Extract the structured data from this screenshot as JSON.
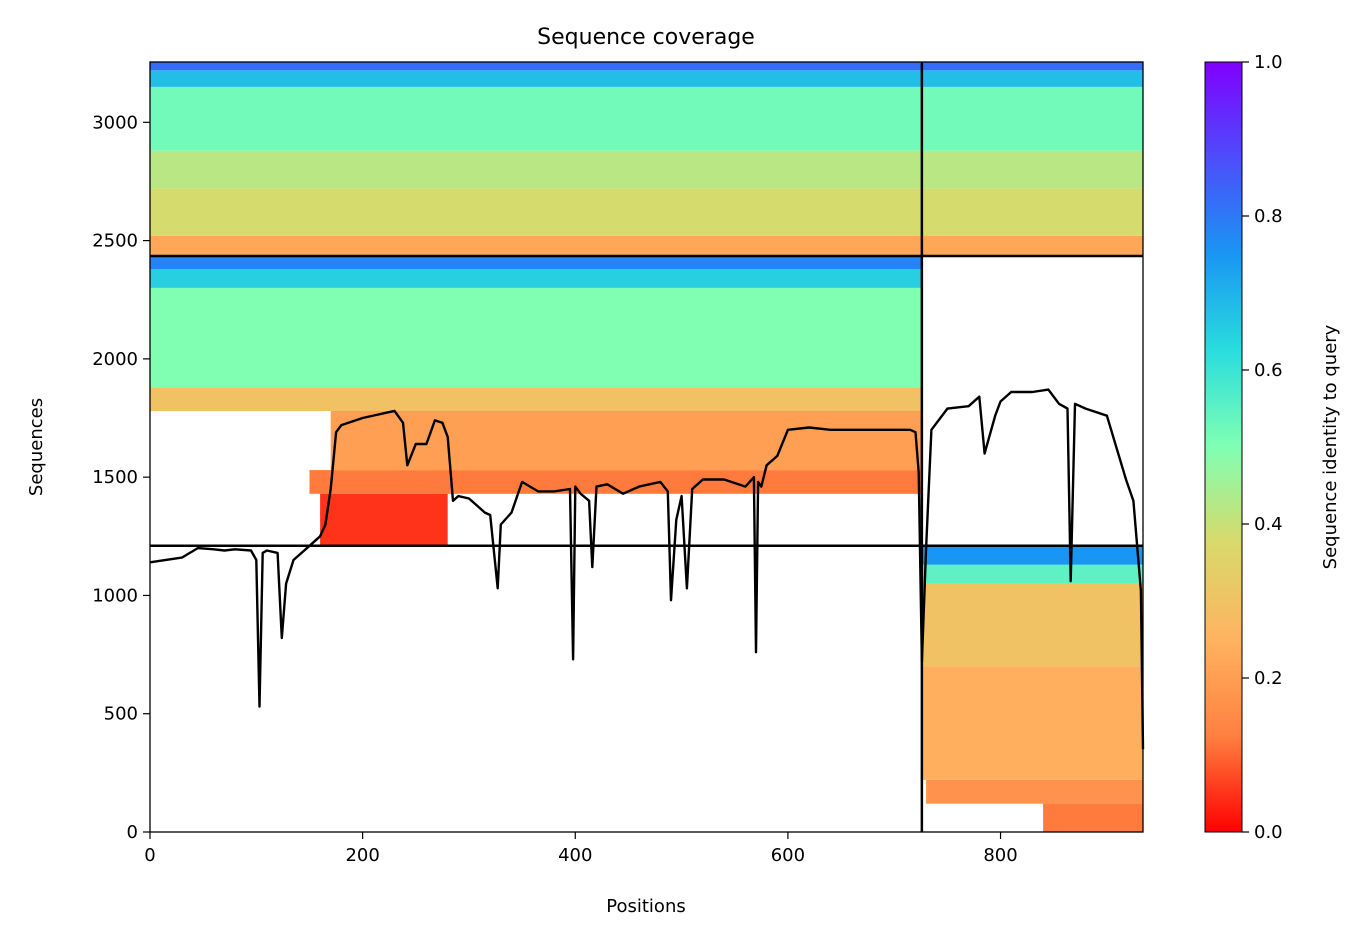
{
  "chart_data": {
    "type": "heatmap",
    "title": "Sequence coverage",
    "xlabel": "Positions",
    "ylabel": "Sequences",
    "xlim": [
      0,
      934
    ],
    "ylim": [
      0,
      3255
    ],
    "x_ticks": [
      0,
      200,
      400,
      600,
      800
    ],
    "y_ticks": [
      0,
      500,
      1000,
      1500,
      2000,
      2500,
      3000
    ],
    "grid": false,
    "colorbar": {
      "label": "Sequence identity to query",
      "range": [
        0,
        1
      ],
      "ticks": [
        "0.0",
        "0.2",
        "0.4",
        "0.6",
        "0.8",
        "1.0"
      ],
      "colormap": "rainbow_r",
      "colors": [
        "#ff0000",
        "#ff8040",
        "#ffb360",
        "#d9d96a",
        "#80ffb3",
        "#2adddd",
        "#1996f3",
        "#4d4dfb",
        "#8000ff"
      ]
    },
    "boundaries": {
      "x_positions": [
        726
      ],
      "y_sequences": [
        1210,
        2435
      ]
    },
    "blocks": [
      {
        "name": "chain-1-only",
        "x": [
          0,
          726
        ],
        "y": [
          1210,
          2435
        ],
        "bands": [
          {
            "y": [
              1210,
              1430
            ],
            "x": [
              160,
              280
            ],
            "identity": 0.05
          },
          {
            "y": [
              1430,
              1530
            ],
            "x": [
              150,
              726
            ],
            "identity": 0.12
          },
          {
            "y": [
              1530,
              1780
            ],
            "x": [
              170,
              726
            ],
            "identity": 0.2
          },
          {
            "y": [
              1780,
              1880
            ],
            "x": [
              0,
              726
            ],
            "identity": 0.3
          },
          {
            "y": [
              1880,
              2300
            ],
            "x": [
              0,
              726
            ],
            "identity": 0.5
          },
          {
            "y": [
              2300,
              2380
            ],
            "x": [
              0,
              726
            ],
            "identity": 0.65
          },
          {
            "y": [
              2380,
              2435
            ],
            "x": [
              0,
              726
            ],
            "identity": 0.78
          }
        ]
      },
      {
        "name": "chain-2-only",
        "x": [
          726,
          934
        ],
        "y": [
          0,
          1210
        ],
        "bands": [
          {
            "y": [
              0,
              120
            ],
            "x": [
              840,
              934
            ],
            "identity": 0.12
          },
          {
            "y": [
              120,
              220
            ],
            "x": [
              730,
              934
            ],
            "identity": 0.17
          },
          {
            "y": [
              220,
              700
            ],
            "x": [
              726,
              934
            ],
            "identity": 0.24
          },
          {
            "y": [
              700,
              1050
            ],
            "x": [
              726,
              934
            ],
            "identity": 0.3
          },
          {
            "y": [
              1050,
              1130
            ],
            "x": [
              726,
              934
            ],
            "identity": 0.55
          },
          {
            "y": [
              1130,
              1210
            ],
            "x": [
              726,
              934
            ],
            "identity": 0.75
          }
        ]
      },
      {
        "name": "paired",
        "x": [
          0,
          934
        ],
        "y": [
          2435,
          3255
        ],
        "bands": [
          {
            "y": [
              2435,
              2520
            ],
            "x": [
              0,
              934
            ],
            "identity": 0.22
          },
          {
            "y": [
              2520,
              2720
            ],
            "x": [
              0,
              934
            ],
            "identity": 0.38
          },
          {
            "y": [
              2720,
              2880
            ],
            "x": [
              0,
              934
            ],
            "identity": 0.42
          },
          {
            "y": [
              2880,
              3150
            ],
            "x": [
              0,
              934
            ],
            "identity": 0.52
          },
          {
            "y": [
              3150,
              3220
            ],
            "x": [
              0,
              934
            ],
            "identity": 0.68
          },
          {
            "y": [
              3220,
              3255
            ],
            "x": [
              0,
              934
            ],
            "identity": 0.82
          }
        ]
      }
    ],
    "coverage_line": {
      "x": [
        0,
        30,
        45,
        60,
        70,
        80,
        95,
        100,
        103,
        106,
        110,
        120,
        124,
        128,
        135,
        150,
        160,
        165,
        170,
        175,
        180,
        200,
        230,
        238,
        242,
        250,
        260,
        268,
        275,
        280,
        285,
        290,
        300,
        315,
        320,
        327,
        330,
        340,
        350,
        365,
        380,
        395,
        398,
        400,
        405,
        413,
        416,
        420,
        430,
        445,
        460,
        480,
        487,
        490,
        495,
        500,
        505,
        510,
        520,
        540,
        560,
        568,
        570,
        572,
        575,
        580,
        590,
        600,
        620,
        640,
        660,
        690,
        715,
        720,
        723,
        726,
        730,
        735,
        750,
        770,
        780,
        785,
        790,
        795,
        800,
        810,
        830,
        845,
        855,
        863,
        866,
        870,
        880,
        900,
        910,
        918,
        925,
        932,
        934
      ],
      "y": [
        1140,
        1160,
        1200,
        1195,
        1190,
        1195,
        1190,
        1150,
        530,
        1180,
        1190,
        1180,
        820,
        1050,
        1150,
        1210,
        1250,
        1300,
        1450,
        1690,
        1720,
        1750,
        1780,
        1730,
        1550,
        1640,
        1640,
        1740,
        1730,
        1670,
        1400,
        1420,
        1410,
        1350,
        1340,
        1030,
        1300,
        1350,
        1480,
        1440,
        1440,
        1450,
        730,
        1460,
        1430,
        1400,
        1120,
        1460,
        1470,
        1430,
        1460,
        1480,
        1440,
        980,
        1320,
        1420,
        1030,
        1450,
        1490,
        1490,
        1460,
        1500,
        760,
        1480,
        1460,
        1550,
        1590,
        1700,
        1710,
        1700,
        1700,
        1700,
        1700,
        1690,
        1520,
        720,
        1200,
        1700,
        1790,
        1800,
        1840,
        1600,
        1680,
        1760,
        1820,
        1860,
        1860,
        1870,
        1810,
        1790,
        1060,
        1810,
        1790,
        1760,
        1610,
        1490,
        1400,
        1020,
        350
      ]
    }
  }
}
